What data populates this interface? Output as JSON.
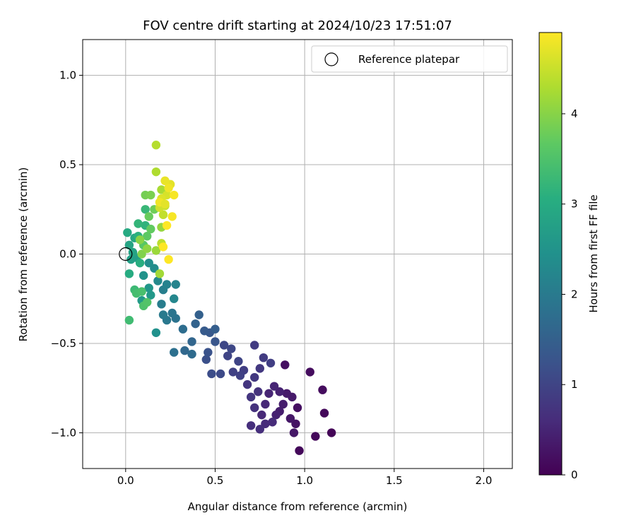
{
  "chart_data": {
    "type": "scatter",
    "title": "FOV centre drift starting at 2024/10/23 17:51:07",
    "xlabel": "Angular distance from reference (arcmin)",
    "ylabel": "Rotation from reference (arcmin)",
    "xlim": [
      -0.24,
      2.16
    ],
    "ylim": [
      -1.2,
      1.2
    ],
    "x_ticks": [
      0.0,
      0.5,
      1.0,
      1.5,
      2.0
    ],
    "x_tick_labels": [
      "0.0",
      "0.5",
      "1.0",
      "1.5",
      "2.0"
    ],
    "y_ticks": [
      -1.0,
      -0.5,
      0.0,
      0.5,
      1.0
    ],
    "y_tick_labels": [
      "−1.0",
      "−0.5",
      "0.0",
      "0.5",
      "1.0"
    ],
    "grid": true,
    "legend": {
      "position": "top-right",
      "entries": [
        {
          "label": "Reference platepar",
          "marker": "open-circle"
        }
      ]
    },
    "reference_point": {
      "x": 0.0,
      "y": 0.0
    },
    "colorbar": {
      "label": "Hours from first FF file",
      "colormap": "viridis",
      "range": [
        0,
        4.9
      ],
      "ticks": [
        0,
        1,
        2,
        3,
        4
      ],
      "tick_labels": [
        "0",
        "1",
        "2",
        "3",
        "4"
      ]
    },
    "points": [
      {
        "x": 1.15,
        "y": -1.0,
        "c": 0.05
      },
      {
        "x": 0.97,
        "y": -1.1,
        "c": 0.1
      },
      {
        "x": 1.06,
        "y": -1.02,
        "c": 0.1
      },
      {
        "x": 1.11,
        "y": -0.89,
        "c": 0.1
      },
      {
        "x": 1.1,
        "y": -0.76,
        "c": 0.15
      },
      {
        "x": 1.03,
        "y": -0.66,
        "c": 0.15
      },
      {
        "x": 0.89,
        "y": -0.62,
        "c": 0.2
      },
      {
        "x": 0.96,
        "y": -0.86,
        "c": 0.2
      },
      {
        "x": 0.95,
        "y": -0.95,
        "c": 0.25
      },
      {
        "x": 0.94,
        "y": -1.0,
        "c": 0.3
      },
      {
        "x": 0.92,
        "y": -0.92,
        "c": 0.3
      },
      {
        "x": 0.93,
        "y": -0.8,
        "c": 0.35
      },
      {
        "x": 0.9,
        "y": -0.78,
        "c": 0.35
      },
      {
        "x": 0.88,
        "y": -0.84,
        "c": 0.4
      },
      {
        "x": 0.86,
        "y": -0.88,
        "c": 0.4
      },
      {
        "x": 0.84,
        "y": -0.9,
        "c": 0.45
      },
      {
        "x": 0.86,
        "y": -0.77,
        "c": 0.45
      },
      {
        "x": 0.83,
        "y": -0.74,
        "c": 0.5
      },
      {
        "x": 0.8,
        "y": -0.78,
        "c": 0.5
      },
      {
        "x": 0.78,
        "y": -0.84,
        "c": 0.55
      },
      {
        "x": 0.76,
        "y": -0.9,
        "c": 0.55
      },
      {
        "x": 0.78,
        "y": -0.95,
        "c": 0.6
      },
      {
        "x": 0.82,
        "y": -0.94,
        "c": 0.6
      },
      {
        "x": 0.75,
        "y": -0.98,
        "c": 0.65
      },
      {
        "x": 0.7,
        "y": -0.96,
        "c": 0.65
      },
      {
        "x": 0.72,
        "y": -0.86,
        "c": 0.7
      },
      {
        "x": 0.74,
        "y": -0.77,
        "c": 0.7
      },
      {
        "x": 0.7,
        "y": -0.8,
        "c": 0.75
      },
      {
        "x": 0.68,
        "y": -0.73,
        "c": 0.75
      },
      {
        "x": 0.72,
        "y": -0.69,
        "c": 0.8
      },
      {
        "x": 0.75,
        "y": -0.64,
        "c": 0.8
      },
      {
        "x": 0.77,
        "y": -0.58,
        "c": 0.85
      },
      {
        "x": 0.72,
        "y": -0.51,
        "c": 0.85
      },
      {
        "x": 0.81,
        "y": -0.61,
        "c": 0.9
      },
      {
        "x": 0.66,
        "y": -0.65,
        "c": 0.9
      },
      {
        "x": 0.64,
        "y": -0.68,
        "c": 0.95
      },
      {
        "x": 0.6,
        "y": -0.66,
        "c": 0.95
      },
      {
        "x": 0.63,
        "y": -0.6,
        "c": 1.0
      },
      {
        "x": 0.57,
        "y": -0.57,
        "c": 1.0
      },
      {
        "x": 0.55,
        "y": -0.51,
        "c": 1.05
      },
      {
        "x": 0.59,
        "y": -0.53,
        "c": 1.05
      },
      {
        "x": 0.53,
        "y": -0.67,
        "c": 1.1
      },
      {
        "x": 0.48,
        "y": -0.67,
        "c": 1.15
      },
      {
        "x": 0.45,
        "y": -0.59,
        "c": 1.2
      },
      {
        "x": 0.46,
        "y": -0.55,
        "c": 1.25
      },
      {
        "x": 0.5,
        "y": -0.49,
        "c": 1.3
      },
      {
        "x": 0.47,
        "y": -0.44,
        "c": 1.35
      },
      {
        "x": 0.44,
        "y": -0.43,
        "c": 1.4
      },
      {
        "x": 0.5,
        "y": -0.42,
        "c": 1.45
      },
      {
        "x": 0.41,
        "y": -0.34,
        "c": 1.5
      },
      {
        "x": 0.39,
        "y": -0.39,
        "c": 1.55
      },
      {
        "x": 0.37,
        "y": -0.49,
        "c": 1.6
      },
      {
        "x": 0.33,
        "y": -0.54,
        "c": 1.65
      },
      {
        "x": 0.37,
        "y": -0.56,
        "c": 1.7
      },
      {
        "x": 0.32,
        "y": -0.42,
        "c": 1.75
      },
      {
        "x": 0.27,
        "y": -0.55,
        "c": 1.8
      },
      {
        "x": 0.28,
        "y": -0.36,
        "c": 1.85
      },
      {
        "x": 0.26,
        "y": -0.33,
        "c": 1.9
      },
      {
        "x": 0.23,
        "y": -0.37,
        "c": 1.95
      },
      {
        "x": 0.21,
        "y": -0.34,
        "c": 2.0
      },
      {
        "x": 0.2,
        "y": -0.28,
        "c": 2.05
      },
      {
        "x": 0.21,
        "y": -0.2,
        "c": 2.1
      },
      {
        "x": 0.23,
        "y": -0.17,
        "c": 2.15
      },
      {
        "x": 0.28,
        "y": -0.17,
        "c": 2.2
      },
      {
        "x": 0.27,
        "y": -0.25,
        "c": 2.25
      },
      {
        "x": 0.18,
        "y": -0.15,
        "c": 2.3
      },
      {
        "x": 0.16,
        "y": -0.08,
        "c": 2.35
      },
      {
        "x": 0.13,
        "y": -0.05,
        "c": 2.4
      },
      {
        "x": 0.17,
        "y": -0.44,
        "c": 2.45
      },
      {
        "x": 0.1,
        "y": -0.12,
        "c": 2.5
      },
      {
        "x": 0.13,
        "y": -0.19,
        "c": 2.55
      },
      {
        "x": 0.14,
        "y": -0.23,
        "c": 2.6
      },
      {
        "x": 0.09,
        "y": -0.26,
        "c": 2.65
      },
      {
        "x": 0.06,
        "y": -0.02,
        "c": 2.7
      },
      {
        "x": 0.03,
        "y": -0.03,
        "c": 2.75
      },
      {
        "x": 0.04,
        "y": 0.01,
        "c": 2.8
      },
      {
        "x": 0.02,
        "y": 0.05,
        "c": 2.85
      },
      {
        "x": 0.05,
        "y": 0.09,
        "c": 2.9
      },
      {
        "x": 0.01,
        "y": 0.12,
        "c": 2.95
      },
      {
        "x": 0.02,
        "y": -0.11,
        "c": 3.0
      },
      {
        "x": 0.08,
        "y": -0.05,
        "c": 3.05
      },
      {
        "x": 0.07,
        "y": 0.1,
        "c": 3.1
      },
      {
        "x": 0.11,
        "y": 0.16,
        "c": 3.15
      },
      {
        "x": 0.07,
        "y": 0.17,
        "c": 3.2
      },
      {
        "x": 0.11,
        "y": 0.25,
        "c": 3.25
      },
      {
        "x": 0.05,
        "y": -0.2,
        "c": 3.3
      },
      {
        "x": 0.02,
        "y": -0.37,
        "c": 3.35
      },
      {
        "x": 0.06,
        "y": -0.22,
        "c": 3.4
      },
      {
        "x": 0.09,
        "y": -0.21,
        "c": 3.45
      },
      {
        "x": 0.1,
        "y": -0.29,
        "c": 3.5
      },
      {
        "x": 0.12,
        "y": -0.27,
        "c": 3.55
      },
      {
        "x": 0.1,
        "y": 0.05,
        "c": 3.6
      },
      {
        "x": 0.12,
        "y": 0.1,
        "c": 3.65
      },
      {
        "x": 0.14,
        "y": 0.14,
        "c": 3.7
      },
      {
        "x": 0.13,
        "y": 0.21,
        "c": 3.75
      },
      {
        "x": 0.16,
        "y": 0.25,
        "c": 3.8
      },
      {
        "x": 0.11,
        "y": 0.33,
        "c": 3.85
      },
      {
        "x": 0.14,
        "y": 0.33,
        "c": 3.9
      },
      {
        "x": 0.09,
        "y": 0.0,
        "c": 3.95
      },
      {
        "x": 0.08,
        "y": 0.08,
        "c": 4.0
      },
      {
        "x": 0.12,
        "y": 0.03,
        "c": 4.05
      },
      {
        "x": 0.2,
        "y": 0.15,
        "c": 4.1
      },
      {
        "x": 0.17,
        "y": 0.02,
        "c": 4.15
      },
      {
        "x": 0.19,
        "y": -0.11,
        "c": 4.2
      },
      {
        "x": 0.2,
        "y": 0.36,
        "c": 4.25
      },
      {
        "x": 0.17,
        "y": 0.46,
        "c": 4.3
      },
      {
        "x": 0.17,
        "y": 0.61,
        "c": 4.35
      },
      {
        "x": 0.2,
        "y": 0.06,
        "c": 4.4
      },
      {
        "x": 0.21,
        "y": 0.22,
        "c": 4.45
      },
      {
        "x": 0.22,
        "y": 0.27,
        "c": 4.5
      },
      {
        "x": 0.19,
        "y": 0.26,
        "c": 4.55
      },
      {
        "x": 0.23,
        "y": 0.33,
        "c": 4.6
      },
      {
        "x": 0.2,
        "y": 0.31,
        "c": 4.65
      },
      {
        "x": 0.25,
        "y": 0.39,
        "c": 4.7
      },
      {
        "x": 0.22,
        "y": 0.41,
        "c": 4.75
      },
      {
        "x": 0.24,
        "y": 0.37,
        "c": 4.8
      },
      {
        "x": 0.27,
        "y": 0.33,
        "c": 4.85
      },
      {
        "x": 0.26,
        "y": 0.21,
        "c": 4.85
      },
      {
        "x": 0.23,
        "y": 0.16,
        "c": 4.9
      },
      {
        "x": 0.21,
        "y": 0.04,
        "c": 4.9
      },
      {
        "x": 0.24,
        "y": -0.03,
        "c": 4.9
      },
      {
        "x": 0.19,
        "y": 0.29,
        "c": 4.8
      },
      {
        "x": 0.22,
        "y": 0.28,
        "c": 4.7
      }
    ]
  }
}
